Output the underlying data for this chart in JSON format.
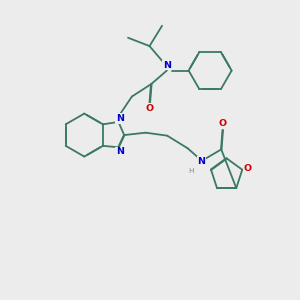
{
  "bg_color": "#ececec",
  "bond_color": "#3a7a60",
  "N_color": "#0000cc",
  "O_color": "#cc0000",
  "H_color": "#888888",
  "lw": 1.3,
  "dbo": 0.013,
  "fs": 6.8,
  "figsize": [
    3.0,
    3.0
  ],
  "dpi": 100,
  "xlim": [
    0,
    10
  ],
  "ylim": [
    0,
    10
  ]
}
